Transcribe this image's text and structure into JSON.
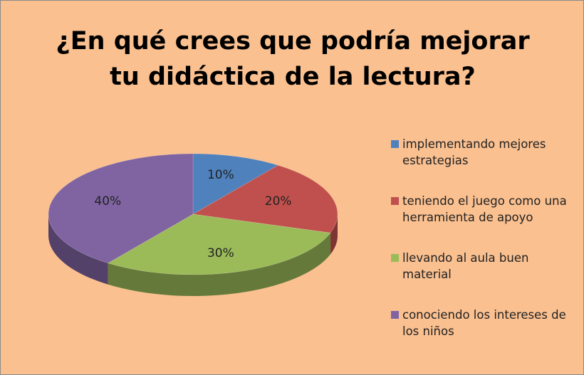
{
  "chart_data": {
    "type": "pie",
    "title": "¿En qué crees que podría mejorar tu didáctica de la lectura?",
    "categories": [
      "implementando mejores estrategias",
      "teniendo el juego como una herramienta de apoyo",
      "llevando al aula buen material",
      "conociendo los intereses de los niños"
    ],
    "values": [
      10,
      20,
      30,
      40
    ],
    "value_labels": [
      "10%",
      "20%",
      "30%",
      "40%"
    ],
    "colors": [
      "#4f81bd",
      "#c0504d",
      "#9bbb59",
      "#8064a2"
    ],
    "legend": "right"
  }
}
